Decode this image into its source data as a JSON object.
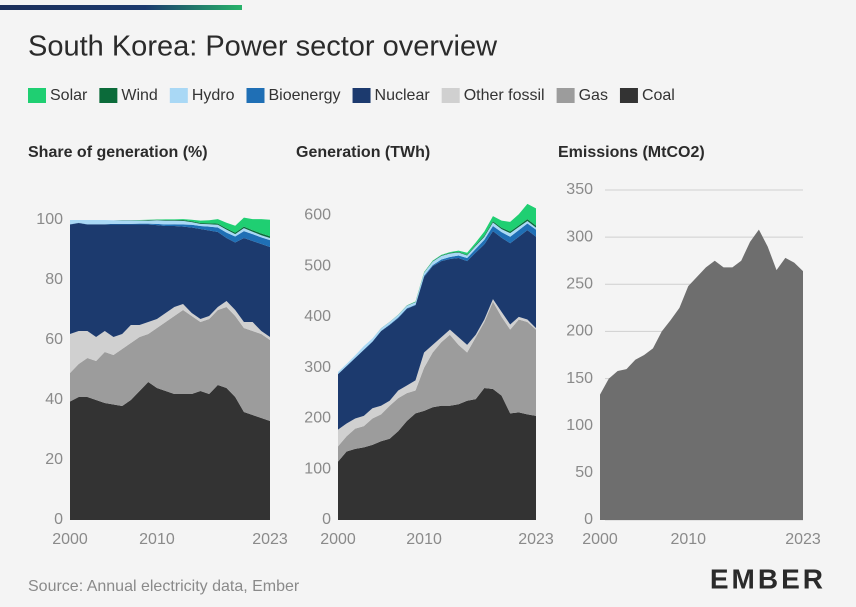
{
  "title": "South Korea: Power sector overview",
  "source": "Source: Annual electricity data, Ember",
  "logo": "EMBER",
  "chart_data": [
    {
      "type": "area",
      "stacked": true,
      "title": "Share of generation (%)",
      "x": [
        2000,
        2001,
        2002,
        2003,
        2004,
        2005,
        2006,
        2007,
        2008,
        2009,
        2010,
        2011,
        2012,
        2013,
        2014,
        2015,
        2016,
        2017,
        2018,
        2019,
        2020,
        2021,
        2022,
        2023
      ],
      "xlim": [
        2000,
        2023
      ],
      "xticks": [
        2000,
        2010,
        2023
      ],
      "ylim": [
        0,
        110
      ],
      "yticks": [
        0,
        20,
        40,
        60,
        80,
        100
      ],
      "grid": false,
      "series": [
        {
          "name": "Solar",
          "color": "#1fcf72",
          "values": [
            0,
            0,
            0,
            0,
            0,
            0,
            0,
            0,
            0.1,
            0.1,
            0.1,
            0.2,
            0.2,
            0.3,
            0.5,
            0.8,
            1,
            1.5,
            1.9,
            2.3,
            3,
            3.7,
            4.8,
            5.5
          ]
        },
        {
          "name": "Wind",
          "color": "#0b6b3a",
          "values": [
            0,
            0,
            0,
            0,
            0,
            0,
            0.1,
            0.1,
            0.1,
            0.2,
            0.2,
            0.2,
            0.2,
            0.3,
            0.3,
            0.3,
            0.3,
            0.4,
            0.4,
            0.5,
            0.5,
            0.5,
            0.6,
            0.6
          ]
        },
        {
          "name": "Hydro",
          "color": "#a9d8f5",
          "values": [
            1.4,
            0.9,
            1.4,
            1.4,
            1.4,
            1.2,
            1.2,
            1.2,
            1,
            1,
            1.2,
            1.3,
            1.2,
            1.2,
            0.9,
            0.7,
            0.8,
            0.9,
            1,
            0.8,
            1,
            0.8,
            0.7,
            0.7
          ]
        },
        {
          "name": "Bioenergy",
          "color": "#1f6fb5",
          "values": [
            0.1,
            0.1,
            0.1,
            0.1,
            0.1,
            0.2,
            0.2,
            0.2,
            0.3,
            0.3,
            0.4,
            0.5,
            0.6,
            0.7,
            0.9,
            1,
            1.3,
            1.5,
            1.8,
            2,
            2.3,
            2.3,
            2.2,
            2.3
          ]
        },
        {
          "name": "Nuclear",
          "color": "#1c3a6e",
          "values": [
            36.5,
            36,
            35.5,
            37.5,
            35.5,
            37.5,
            36.5,
            33.5,
            33.5,
            32.5,
            31.3,
            29,
            27,
            25.8,
            28.5,
            30,
            28.5,
            25,
            21,
            22.5,
            28,
            27,
            29,
            30
          ]
        },
        {
          "name": "Other fossil",
          "color": "#d0d0d0",
          "values": [
            13,
            11,
            9,
            8,
            7,
            6,
            5,
            6,
            4,
            4,
            3,
            3,
            3,
            2,
            1,
            1,
            1,
            1,
            2,
            2,
            2,
            3,
            1,
            1
          ]
        },
        {
          "name": "Gas",
          "color": "#9c9c9c",
          "values": [
            9.5,
            11,
            13,
            13,
            17,
            16.5,
            19,
            19,
            18,
            16,
            20,
            23,
            26,
            28,
            26,
            23,
            25,
            25,
            27,
            27,
            28,
            28,
            28,
            27
          ]
        },
        {
          "name": "Coal",
          "color": "#333333",
          "values": [
            39.5,
            41,
            41,
            40,
            39,
            38.5,
            38,
            40,
            43,
            46,
            44,
            43,
            42,
            42,
            42,
            43,
            42,
            45,
            44,
            41,
            36,
            35,
            34,
            33
          ]
        }
      ]
    },
    {
      "type": "area",
      "stacked": true,
      "title": "Generation (TWh)",
      "x": [
        2000,
        2001,
        2002,
        2003,
        2004,
        2005,
        2006,
        2007,
        2008,
        2009,
        2010,
        2011,
        2012,
        2013,
        2014,
        2015,
        2016,
        2017,
        2018,
        2019,
        2020,
        2021,
        2022,
        2023
      ],
      "xlim": [
        2000,
        2023
      ],
      "xticks": [
        2000,
        2010,
        2023
      ],
      "ylim": [
        0,
        650
      ],
      "yticks": [
        0,
        100,
        200,
        300,
        400,
        500,
        600
      ],
      "grid": false,
      "series": [
        {
          "name": "Solar",
          "color": "#1fcf72",
          "values": [
            0,
            0,
            0,
            0,
            0,
            0,
            0,
            0.1,
            0.3,
            0.6,
            0.8,
            0.9,
            1.1,
            1.6,
            2.6,
            4,
            5,
            8,
            10,
            14,
            19,
            22,
            30,
            34
          ]
        },
        {
          "name": "Wind",
          "color": "#0b6b3a",
          "values": [
            0,
            0,
            0,
            0,
            0,
            0.2,
            0.3,
            0.4,
            0.4,
            0.7,
            0.8,
            0.9,
            1,
            1.1,
            1.1,
            1.3,
            1.7,
            2.2,
            2.5,
            2.7,
            3.2,
            3.2,
            3.6,
            3.9
          ]
        },
        {
          "name": "Hydro",
          "color": "#a9d8f5",
          "values": [
            4,
            4,
            5,
            7,
            6,
            5,
            5,
            5,
            5,
            5,
            6,
            7,
            7,
            7,
            6,
            5,
            6,
            6,
            7,
            6,
            7,
            6,
            5,
            4
          ]
        },
        {
          "name": "Bioenergy",
          "color": "#1f6fb5",
          "values": [
            0.5,
            0.5,
            0.5,
            0.5,
            0.5,
            0.5,
            1,
            1,
            1,
            1,
            2,
            2,
            3,
            4,
            5,
            6,
            7,
            9,
            10,
            11,
            13,
            13,
            13,
            14
          ]
        },
        {
          "name": "Nuclear",
          "color": "#1c3a6e",
          "values": [
            109,
            113,
            119,
            130,
            131,
            147,
            149,
            143,
            151,
            148,
            149,
            155,
            150,
            139,
            156,
            165,
            162,
            148,
            134,
            146,
            160,
            158,
            176,
            180
          ]
        },
        {
          "name": "Other fossil",
          "color": "#d0d0d0",
          "values": [
            33,
            25,
            20,
            20,
            20,
            17,
            10,
            15,
            15,
            20,
            30,
            15,
            10,
            10,
            15,
            15,
            5,
            5,
            5,
            10,
            10,
            5,
            5,
            3
          ]
        },
        {
          "name": "Gas",
          "color": "#9c9c9c",
          "values": [
            30,
            30,
            40,
            42,
            52,
            53,
            65,
            65,
            55,
            45,
            85,
            108,
            125,
            140,
            117,
            95,
            122,
            130,
            172,
            155,
            165,
            183,
            182,
            170
          ]
        },
        {
          "name": "Coal",
          "color": "#333333",
          "values": [
            115,
            135,
            140,
            143,
            148,
            155,
            160,
            175,
            195,
            210,
            215,
            222,
            225,
            225,
            228,
            235,
            238,
            260,
            258,
            245,
            210,
            212,
            208,
            205
          ]
        }
      ]
    },
    {
      "type": "area",
      "title": "Emissions (MtCO2)",
      "x": [
        2000,
        2001,
        2002,
        2003,
        2004,
        2005,
        2006,
        2007,
        2008,
        2009,
        2010,
        2011,
        2012,
        2013,
        2014,
        2015,
        2016,
        2017,
        2018,
        2019,
        2020,
        2021,
        2022,
        2023
      ],
      "xlim": [
        2000,
        2023
      ],
      "xticks": [
        2000,
        2010,
        2023
      ],
      "ylim": [
        0,
        350
      ],
      "yticks": [
        0,
        50,
        100,
        150,
        200,
        250,
        300,
        350
      ],
      "grid": true,
      "color": "#6e6e6e",
      "values": [
        133,
        150,
        158,
        160,
        170,
        175,
        182,
        200,
        212,
        225,
        248,
        258,
        268,
        275,
        268,
        268,
        275,
        295,
        308,
        290,
        265,
        278,
        273,
        264
      ]
    }
  ]
}
